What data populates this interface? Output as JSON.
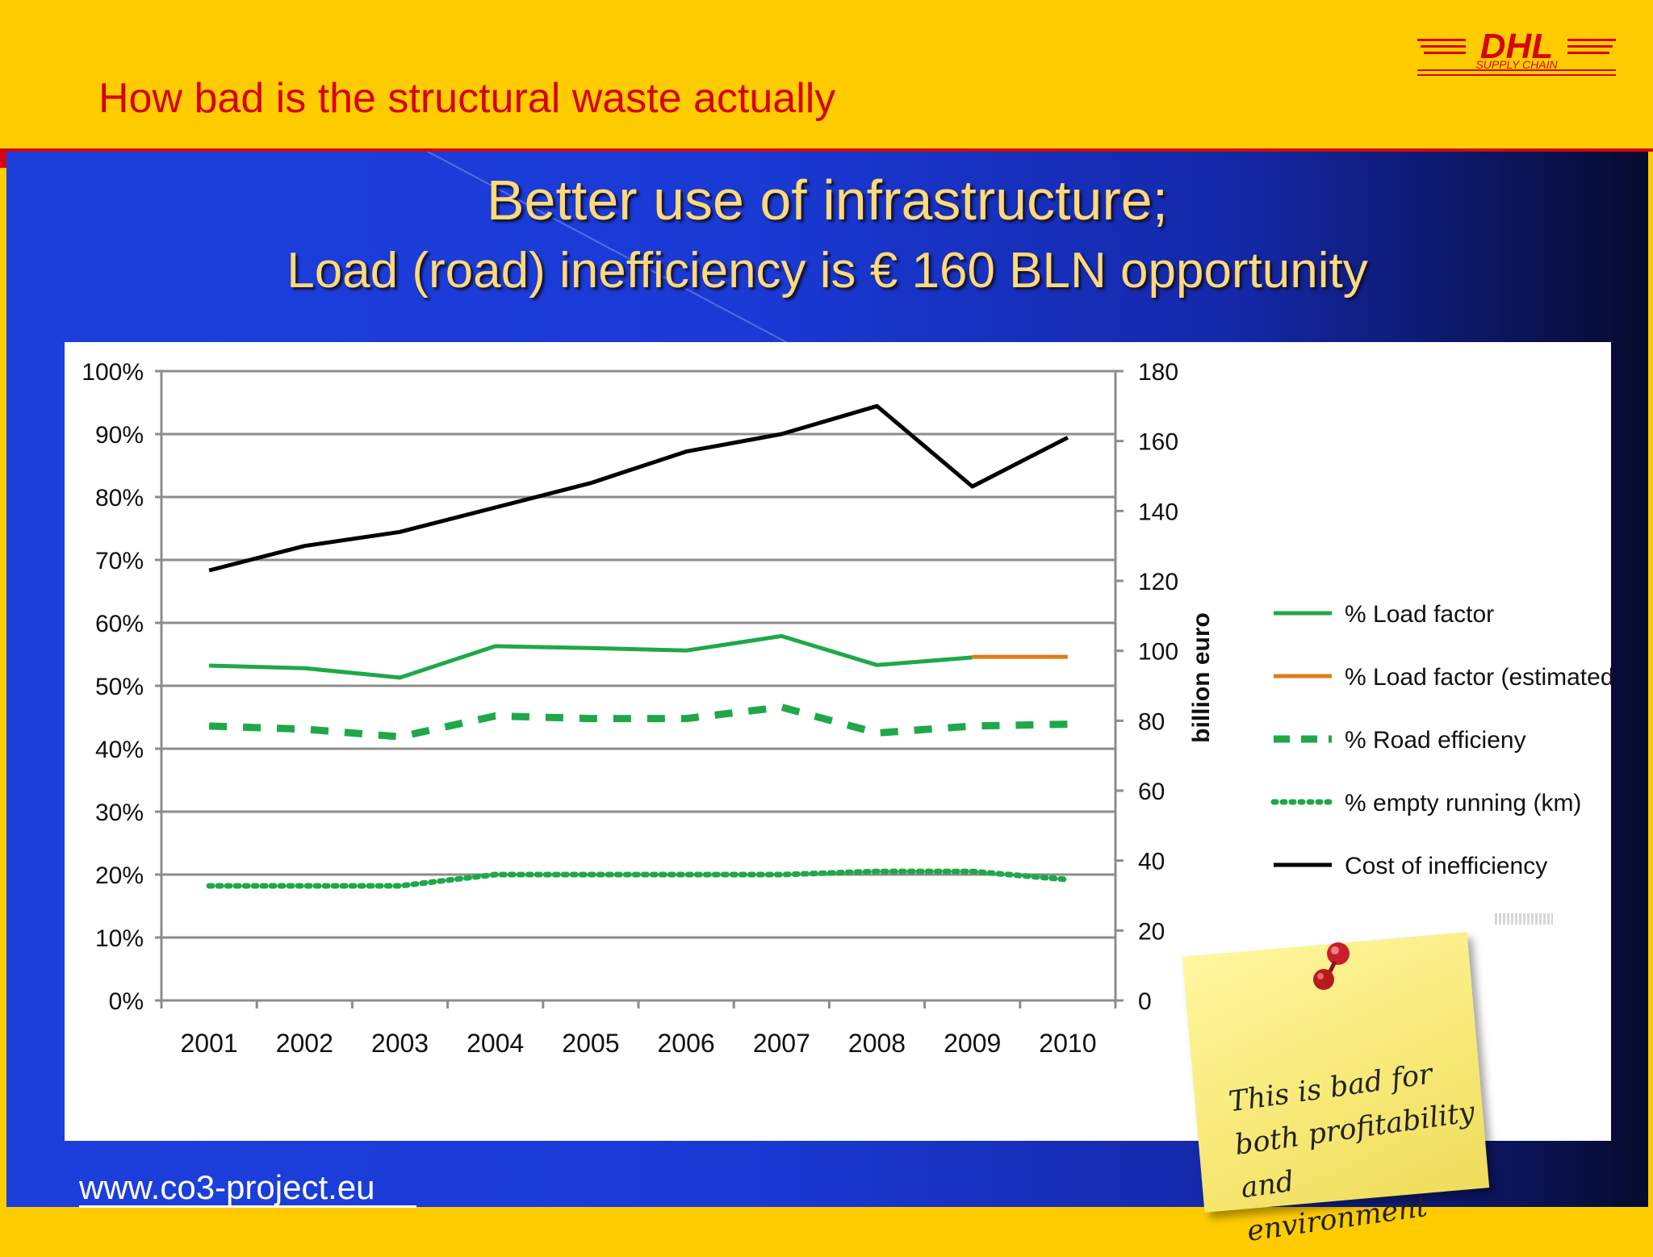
{
  "header": {
    "title": "How bad is the structural waste actually",
    "logo_text": "DHL",
    "logo_subtext": "SUPPLY CHAIN"
  },
  "slide": {
    "title_line1": "Better use of infrastructure;",
    "title_line2": "Load (road) inefficiency is € 160 BLN opportunity",
    "footer_url": "www.co3-project.eu",
    "note_lines": [
      "This is bad for",
      "both profitability",
      "and environment"
    ]
  },
  "colors": {
    "brand_yellow": "#ffcc00",
    "brand_red": "#d40511",
    "load_factor": "#1fa84a",
    "load_factor_estimated": "#e07b18",
    "road_efficiency": "#1fa84a",
    "empty_running": "#1fa84a",
    "cost": "#000000"
  },
  "chart_data": {
    "type": "line",
    "categories": [
      "2001",
      "2002",
      "2003",
      "2004",
      "2005",
      "2006",
      "2007",
      "2008",
      "2009",
      "2010"
    ],
    "y_left": {
      "ticks": [
        "0%",
        "10%",
        "20%",
        "30%",
        "40%",
        "50%",
        "60%",
        "70%",
        "80%",
        "90%",
        "100%"
      ],
      "ylim": [
        0,
        100
      ]
    },
    "y_right": {
      "label": "billion euro",
      "ticks": [
        "0",
        "20",
        "40",
        "60",
        "80",
        "100",
        "120",
        "140",
        "160",
        "180"
      ],
      "ylim": [
        0,
        180
      ]
    },
    "grid": true,
    "legend_position": "right",
    "series": [
      {
        "name": "% Load factor",
        "axis": "left",
        "style": "solid",
        "color": "#1fa84a",
        "values": [
          53.2,
          52.8,
          51.3,
          56.3,
          56.0,
          55.6,
          57.9,
          53.3,
          54.5,
          null
        ]
      },
      {
        "name": "% Load factor (estimated)",
        "axis": "left",
        "style": "solid",
        "color": "#e07b18",
        "values": [
          null,
          null,
          null,
          null,
          null,
          null,
          null,
          null,
          54.6,
          54.6
        ]
      },
      {
        "name": "% Road efficieny",
        "axis": "left",
        "style": "dashed",
        "color": "#1fa84a",
        "values": [
          43.6,
          43.1,
          41.9,
          45.2,
          44.8,
          44.8,
          46.6,
          42.5,
          43.6,
          43.9
        ]
      },
      {
        "name": "% empty running (km)",
        "axis": "left",
        "style": "dotted",
        "color": "#1fa84a",
        "values": [
          18.2,
          18.2,
          18.2,
          20.0,
          20.0,
          20.0,
          20.0,
          20.5,
          20.5,
          19.2
        ]
      },
      {
        "name": "Cost of inefficiency",
        "axis": "right",
        "style": "solid",
        "color": "#000000",
        "values": [
          123,
          130,
          134,
          141,
          148,
          157,
          162,
          170,
          147,
          161
        ]
      }
    ]
  }
}
